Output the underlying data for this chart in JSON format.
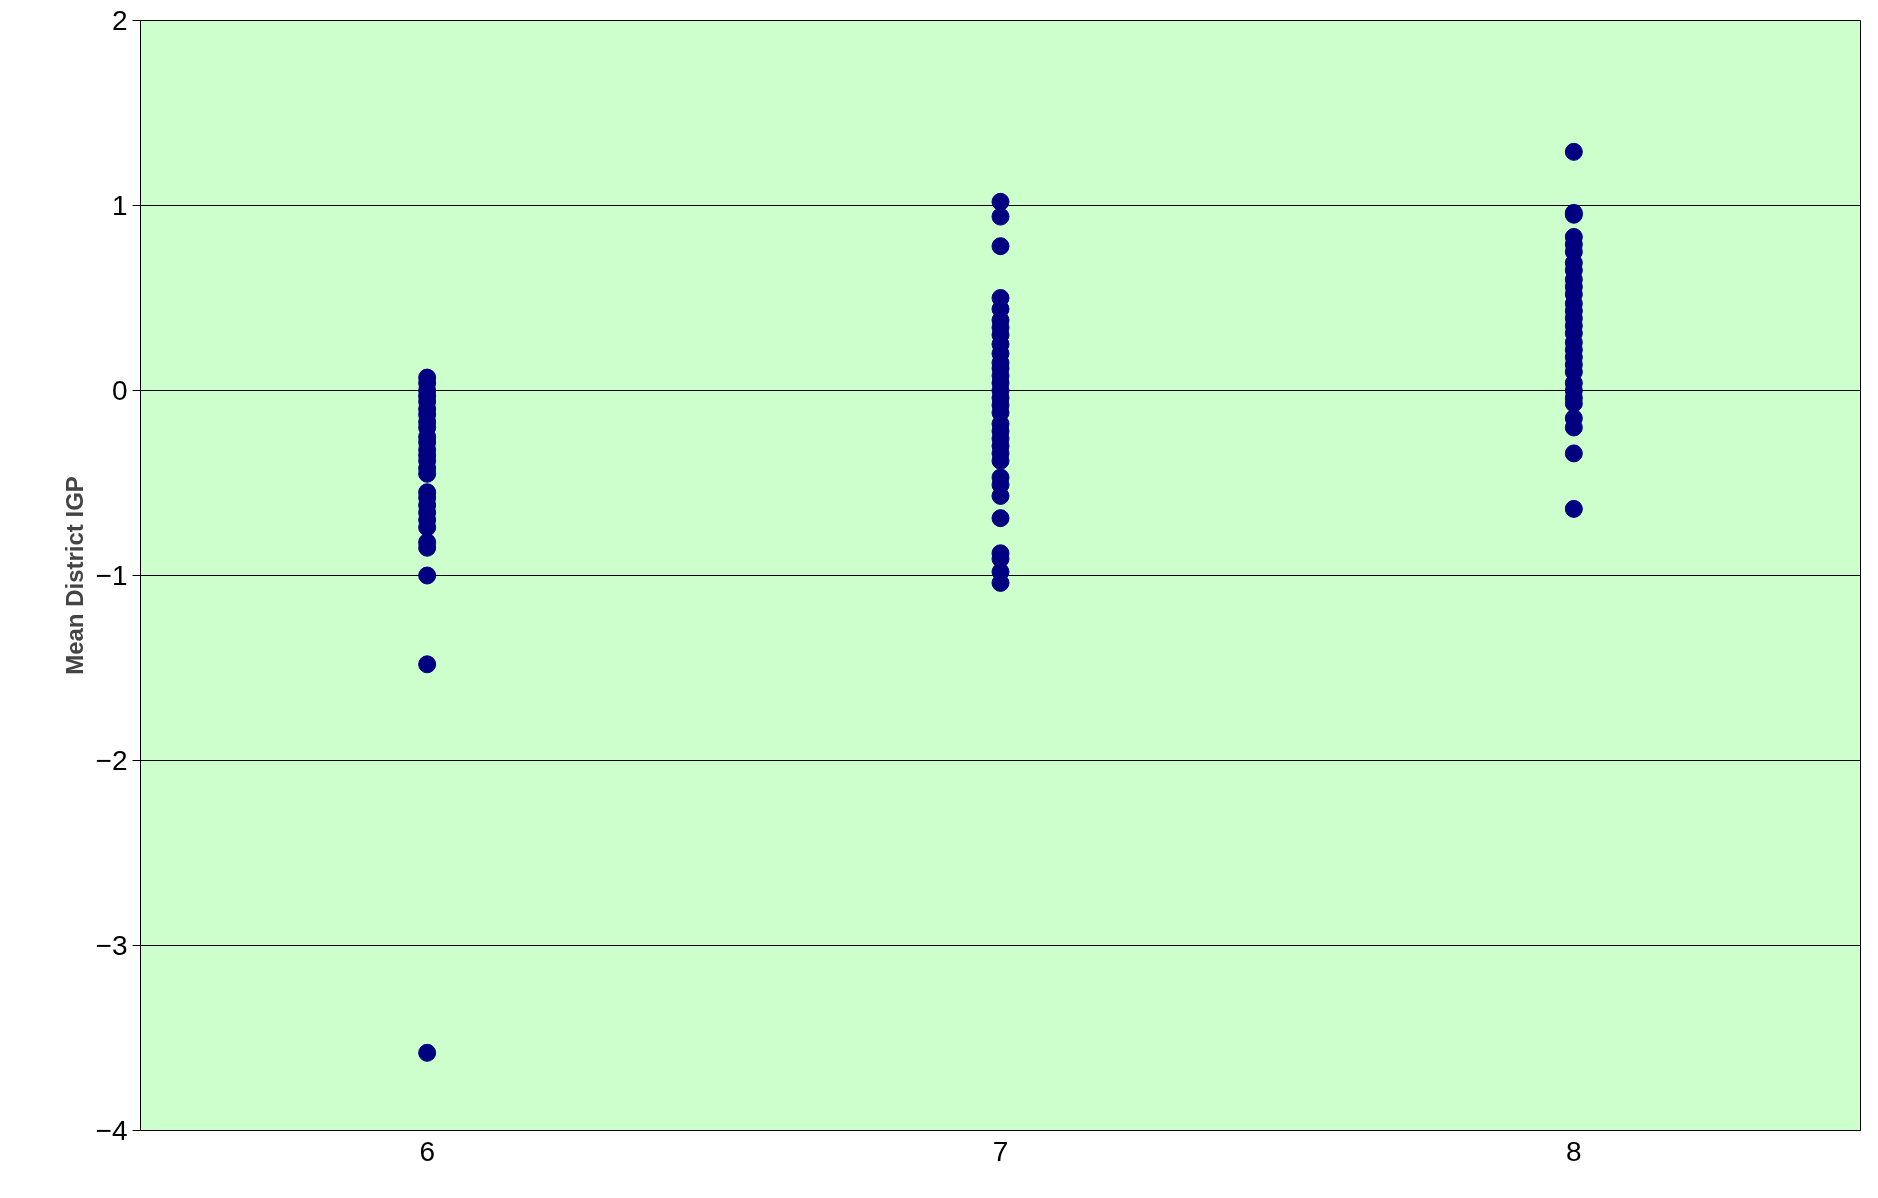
{
  "chart_data": {
    "type": "scatter",
    "ylabel": "Mean District IGP",
    "xlim": [
      5.5,
      8.5
    ],
    "xticks": [
      6,
      7,
      8
    ],
    "ylim": [
      -4,
      2
    ],
    "yticks": [
      -4,
      -3,
      -2,
      -1,
      0,
      1,
      2
    ],
    "grid": "y",
    "marker": "circle",
    "x": [
      6,
      6,
      6,
      6,
      6,
      6,
      6,
      6,
      6,
      6,
      6,
      6,
      6,
      6,
      6,
      6,
      6,
      6,
      6,
      6,
      6,
      6,
      6,
      6,
      6,
      6,
      6,
      7,
      7,
      7,
      7,
      7,
      7,
      7,
      7,
      7,
      7,
      7,
      7,
      7,
      7,
      7,
      7,
      7,
      7,
      7,
      7,
      7,
      7,
      7,
      7,
      7,
      7,
      7,
      7,
      7,
      7,
      7,
      7,
      8,
      8,
      8,
      8,
      8,
      8,
      8,
      8,
      8,
      8,
      8,
      8,
      8,
      8,
      8,
      8,
      8,
      8,
      8,
      8,
      8,
      8,
      8,
      8,
      8,
      8,
      8,
      8,
      8
    ],
    "series": [
      {
        "color": "#000080",
        "values": [
          0.07,
          0.04,
          0.0,
          -0.03,
          -0.06,
          -0.1,
          -0.13,
          -0.17,
          -0.2,
          -0.25,
          -0.28,
          -0.32,
          -0.35,
          -0.38,
          -0.42,
          -0.45,
          -0.55,
          -0.58,
          -0.62,
          -0.66,
          -0.7,
          -0.74,
          -0.82,
          -0.85,
          -1.0,
          -1.48,
          -3.58,
          1.02,
          0.94,
          0.78,
          0.5,
          0.44,
          0.38,
          0.34,
          0.3,
          0.25,
          0.2,
          0.15,
          0.12,
          0.08,
          0.04,
          0.0,
          -0.04,
          -0.08,
          -0.12,
          -0.18,
          -0.22,
          -0.26,
          -0.3,
          -0.34,
          -0.38,
          -0.47,
          -0.51,
          -0.57,
          -0.69,
          -0.88,
          -0.91,
          -0.98,
          -1.04,
          1.29,
          0.96,
          0.95,
          0.83,
          0.79,
          0.75,
          0.69,
          0.65,
          0.6,
          0.56,
          0.52,
          0.47,
          0.43,
          0.39,
          0.35,
          0.31,
          0.26,
          0.22,
          0.18,
          0.14,
          0.1,
          0.04,
          0.0,
          -0.04,
          -0.07,
          -0.15,
          -0.2,
          -0.34,
          -0.64
        ]
      }
    ]
  }
}
